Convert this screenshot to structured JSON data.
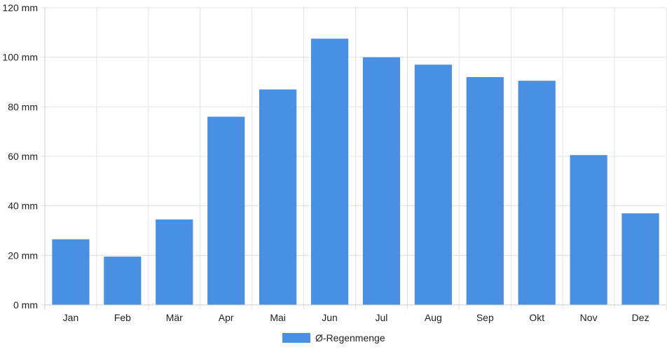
{
  "colors": {
    "bar": "#4a90e2",
    "grid": "#e3e3e3",
    "axis": "#cccccc",
    "text": "#222222"
  },
  "chart_data": {
    "type": "bar",
    "categories": [
      "Jan",
      "Feb",
      "Mär",
      "Apr",
      "Mai",
      "Jun",
      "Jul",
      "Aug",
      "Sep",
      "Okt",
      "Nov",
      "Dez"
    ],
    "series": [
      {
        "name": "Ø-Regenmenge",
        "values": [
          26.5,
          19.5,
          34.5,
          76,
          87,
          107.5,
          100,
          97,
          92,
          90.5,
          60.5,
          37
        ]
      }
    ],
    "ylim": [
      0,
      120
    ],
    "yticks": [
      0,
      20,
      40,
      60,
      80,
      100,
      120
    ],
    "yunit": "mm",
    "grid": true,
    "legend_position": "bottom"
  }
}
